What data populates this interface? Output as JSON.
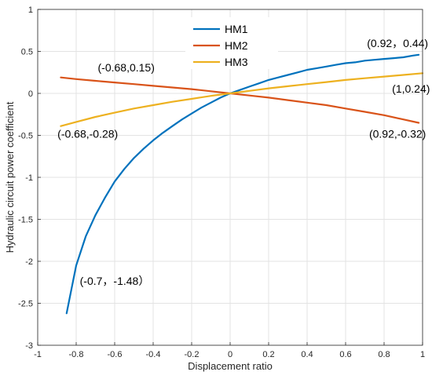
{
  "chart_data": {
    "type": "line",
    "xlabel": "Displacement ratio",
    "ylabel": "Hydraulic circuit power coefficient",
    "xlim": [
      -1,
      1
    ],
    "ylim": [
      -3,
      1
    ],
    "xticks": [
      -1,
      -0.8,
      -0.6,
      -0.4,
      -0.2,
      0,
      0.2,
      0.4,
      0.6,
      0.8,
      1
    ],
    "yticks": [
      -3,
      -2.5,
      -2,
      -1.5,
      -1,
      -0.5,
      0,
      0.5,
      1
    ],
    "xtick_labels": [
      "-1",
      "-0.8",
      "-0.6",
      "-0.4",
      "-0.2",
      "0",
      "0.2",
      "0.4",
      "0.6",
      "0.8",
      "1"
    ],
    "ytick_labels": [
      "-3",
      "-2.5",
      "-2",
      "-1.5",
      "-1",
      "-0.5",
      "0",
      "0.5",
      "1"
    ],
    "grid": true,
    "legend_position": "top-center",
    "series": [
      {
        "name": "HM1",
        "color": "#0072BD",
        "x": [
          -0.85,
          -0.8,
          -0.75,
          -0.7,
          -0.65,
          -0.6,
          -0.55,
          -0.5,
          -0.45,
          -0.4,
          -0.35,
          -0.3,
          -0.25,
          -0.2,
          -0.15,
          -0.1,
          -0.05,
          0,
          0.05,
          0.1,
          0.15,
          0.2,
          0.25,
          0.3,
          0.35,
          0.4,
          0.45,
          0.5,
          0.55,
          0.6,
          0.65,
          0.7,
          0.75,
          0.8,
          0.85,
          0.9,
          0.95,
          0.98
        ],
        "y": [
          -2.62,
          -2.05,
          -1.7,
          -1.45,
          -1.24,
          -1.05,
          -0.9,
          -0.77,
          -0.66,
          -0.56,
          -0.47,
          -0.39,
          -0.31,
          -0.24,
          -0.17,
          -0.11,
          -0.05,
          0,
          0.04,
          0.08,
          0.12,
          0.16,
          0.19,
          0.22,
          0.25,
          0.28,
          0.3,
          0.32,
          0.34,
          0.36,
          0.37,
          0.39,
          0.4,
          0.41,
          0.42,
          0.43,
          0.45,
          0.46
        ]
      },
      {
        "name": "HM2",
        "color": "#D95319",
        "x": [
          -0.88,
          -0.8,
          -0.7,
          -0.6,
          -0.5,
          -0.4,
          -0.3,
          -0.2,
          -0.1,
          0,
          0.1,
          0.2,
          0.3,
          0.4,
          0.5,
          0.6,
          0.7,
          0.8,
          0.9,
          0.98
        ],
        "y": [
          0.19,
          0.17,
          0.15,
          0.13,
          0.11,
          0.09,
          0.07,
          0.05,
          0.025,
          0,
          -0.025,
          -0.05,
          -0.08,
          -0.11,
          -0.14,
          -0.18,
          -0.22,
          -0.26,
          -0.31,
          -0.35
        ]
      },
      {
        "name": "HM3",
        "color": "#EDB120",
        "x": [
          -0.88,
          -0.8,
          -0.7,
          -0.6,
          -0.5,
          -0.4,
          -0.3,
          -0.2,
          -0.1,
          0,
          0.1,
          0.2,
          0.3,
          0.4,
          0.5,
          0.6,
          0.7,
          0.8,
          0.9,
          1.0
        ],
        "y": [
          -0.39,
          -0.34,
          -0.28,
          -0.23,
          -0.18,
          -0.14,
          -0.1,
          -0.065,
          -0.03,
          0,
          0.03,
          0.06,
          0.085,
          0.11,
          0.135,
          0.16,
          0.18,
          0.2,
          0.22,
          0.24
        ]
      }
    ],
    "annotations": [
      {
        "text": "(0.92，0.44)",
        "x": 0.87,
        "y": 0.55
      },
      {
        "text": "(-0.68,0.15)",
        "x": -0.54,
        "y": 0.26
      },
      {
        "text": "(1,0.24)",
        "x": 0.94,
        "y": 0.01
      },
      {
        "text": "(-0.68,-0.28)",
        "x": -0.74,
        "y": -0.53
      },
      {
        "text": "(0.92,-0.32)",
        "x": 0.87,
        "y": -0.53
      },
      {
        "text": "(-0.7，-1.48）",
        "x": -0.6,
        "y": -2.28
      }
    ]
  }
}
